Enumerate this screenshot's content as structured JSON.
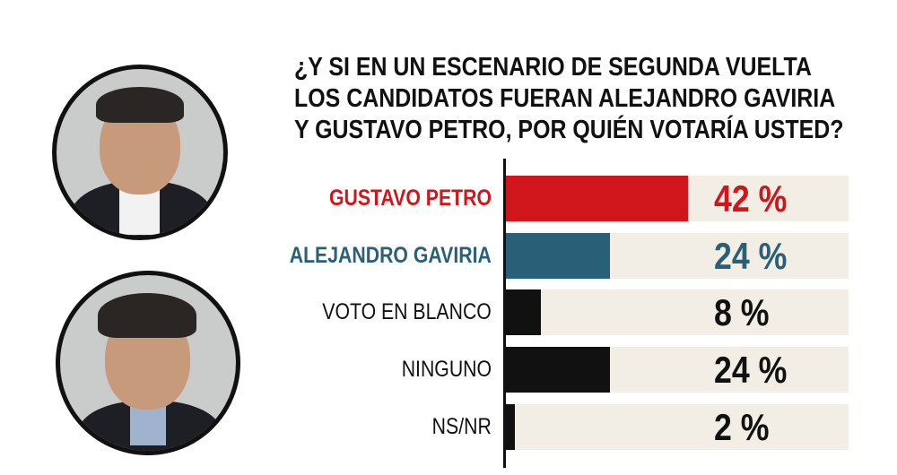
{
  "chart_data": {
    "type": "bar",
    "title": "¿Y SI EN UN ESCENARIO DE SEGUNDA VUELTA LOS CANDIDATOS FUERAN ALEJANDRO GAVIRIA Y GUSTAVO PETRO, POR QUIÉN VOTARÍA USTED?",
    "title_lines": [
      "¿Y SI EN UN ESCENARIO DE SEGUNDA VUELTA",
      "LOS CANDIDATOS FUERAN ALEJANDRO GAVIRIA",
      "Y GUSTAVO PETRO, POR QUIÉN VOTARÍA USTED?"
    ],
    "orientation": "horizontal",
    "categories": [
      "GUSTAVO PETRO",
      "ALEJANDRO GAVIRIA",
      "VOTO EN BLANCO",
      "NINGUNO",
      "NS/NR"
    ],
    "values": [
      42,
      24,
      8,
      24,
      2
    ],
    "value_labels": [
      "42 %",
      "24 %",
      "8 %",
      "24 %",
      "2 %"
    ],
    "bar_colors": [
      "#d0161a",
      "#2a5f78",
      "#111111",
      "#111111",
      "#111111"
    ],
    "label_colors": [
      "#d0161a",
      "#2a5f78",
      "#111111",
      "#111111",
      "#111111"
    ],
    "label_bold": [
      true,
      true,
      false,
      false,
      false
    ],
    "track_color": "#f2eee6",
    "xlim": [
      0,
      79
    ],
    "grid": false
  }
}
